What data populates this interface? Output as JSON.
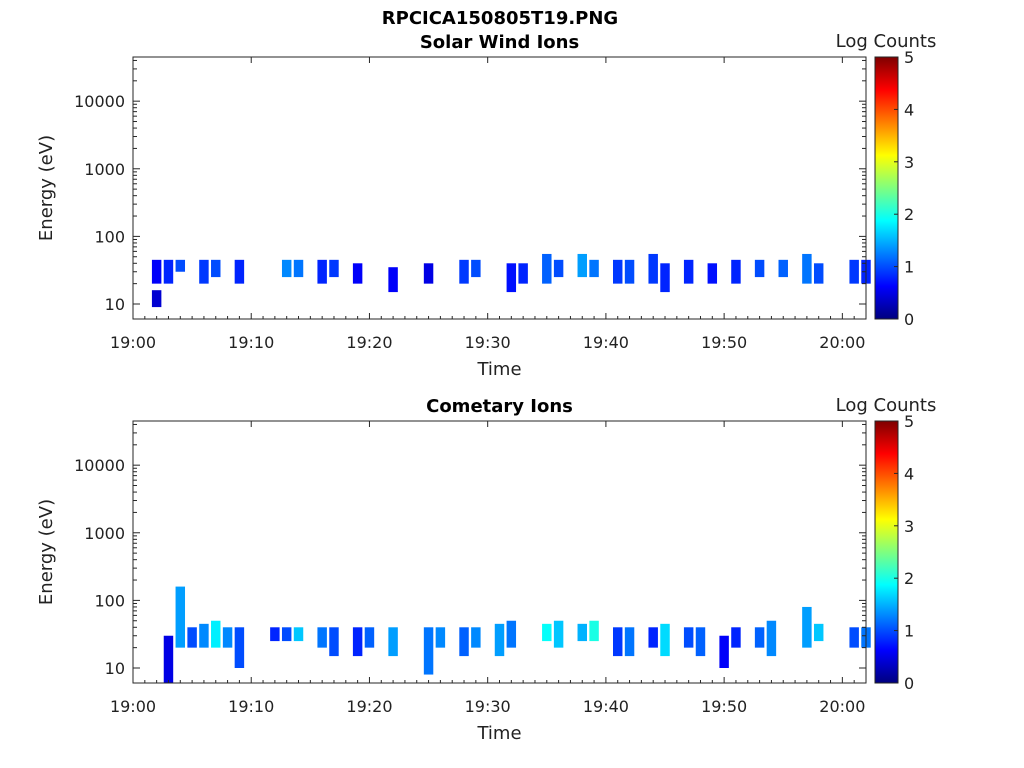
{
  "figure_title": "RPCICA150805T19.PNG",
  "colorbar_stops": [
    "#00007f",
    "#0000ff",
    "#007fff",
    "#00ffff",
    "#7fff7f",
    "#ffff00",
    "#ff7f00",
    "#ff0000",
    "#7f0000"
  ],
  "chart_data": [
    {
      "type": "heatmap",
      "title": "Solar Wind Ions",
      "xlabel": "Time",
      "ylabel": "Energy (eV)",
      "yscale": "log",
      "xlim": [
        "19:00",
        "20:02"
      ],
      "ylim": [
        6,
        45000
      ],
      "x_ticks": [
        "19:00",
        "19:10",
        "19:20",
        "19:30",
        "19:40",
        "19:50",
        "20:00"
      ],
      "y_ticks": [
        "10",
        "100",
        "1000",
        "10000"
      ],
      "colorbar": {
        "label": "Log Counts",
        "min": 0,
        "max": 5,
        "ticks": [
          "0",
          "1",
          "2",
          "3",
          "4",
          "5"
        ]
      },
      "bands": [
        {
          "t": "19:02",
          "e": [
            9,
            16
          ],
          "level": 0.4
        },
        {
          "t": "19:02",
          "e": [
            20,
            45
          ],
          "level": 0.6
        },
        {
          "t": "19:03",
          "e": [
            20,
            45
          ],
          "level": 0.8
        },
        {
          "t": "19:04",
          "e": [
            30,
            45
          ],
          "level": 1.0
        },
        {
          "t": "19:06",
          "e": [
            20,
            45
          ],
          "level": 0.9
        },
        {
          "t": "19:07",
          "e": [
            25,
            45
          ],
          "level": 1.0
        },
        {
          "t": "19:09",
          "e": [
            20,
            45
          ],
          "level": 0.8
        },
        {
          "t": "19:13",
          "e": [
            25,
            45
          ],
          "level": 1.3
        },
        {
          "t": "19:14",
          "e": [
            25,
            45
          ],
          "level": 1.2
        },
        {
          "t": "19:16",
          "e": [
            20,
            45
          ],
          "level": 0.8
        },
        {
          "t": "19:17",
          "e": [
            25,
            45
          ],
          "level": 0.9
        },
        {
          "t": "19:19",
          "e": [
            20,
            40
          ],
          "level": 0.6
        },
        {
          "t": "19:22",
          "e": [
            15,
            35
          ],
          "level": 0.6
        },
        {
          "t": "19:25",
          "e": [
            20,
            40
          ],
          "level": 0.5
        },
        {
          "t": "19:28",
          "e": [
            20,
            45
          ],
          "level": 0.9
        },
        {
          "t": "19:29",
          "e": [
            25,
            45
          ],
          "level": 1.0
        },
        {
          "t": "19:32",
          "e": [
            15,
            40
          ],
          "level": 0.7
        },
        {
          "t": "19:33",
          "e": [
            20,
            40
          ],
          "level": 0.8
        },
        {
          "t": "19:35",
          "e": [
            20,
            55
          ],
          "level": 1.1
        },
        {
          "t": "19:36",
          "e": [
            25,
            45
          ],
          "level": 1.0
        },
        {
          "t": "19:38",
          "e": [
            25,
            55
          ],
          "level": 1.4
        },
        {
          "t": "19:39",
          "e": [
            25,
            45
          ],
          "level": 1.2
        },
        {
          "t": "19:41",
          "e": [
            20,
            45
          ],
          "level": 0.9
        },
        {
          "t": "19:42",
          "e": [
            20,
            45
          ],
          "level": 1.0
        },
        {
          "t": "19:44",
          "e": [
            20,
            55
          ],
          "level": 0.9
        },
        {
          "t": "19:45",
          "e": [
            15,
            40
          ],
          "level": 0.8
        },
        {
          "t": "19:47",
          "e": [
            20,
            45
          ],
          "level": 0.8
        },
        {
          "t": "19:49",
          "e": [
            20,
            40
          ],
          "level": 0.7
        },
        {
          "t": "19:51",
          "e": [
            20,
            45
          ],
          "level": 0.8
        },
        {
          "t": "19:53",
          "e": [
            25,
            45
          ],
          "level": 1.0
        },
        {
          "t": "19:55",
          "e": [
            25,
            45
          ],
          "level": 1.1
        },
        {
          "t": "19:57",
          "e": [
            20,
            55
          ],
          "level": 1.2
        },
        {
          "t": "19:58",
          "e": [
            20,
            40
          ],
          "level": 1.0
        },
        {
          "t": "20:01",
          "e": [
            20,
            45
          ],
          "level": 0.9
        },
        {
          "t": "20:02",
          "e": [
            20,
            45
          ],
          "level": 0.8
        }
      ]
    },
    {
      "type": "heatmap",
      "title": "Cometary Ions",
      "xlabel": "Time",
      "ylabel": "Energy (eV)",
      "yscale": "log",
      "xlim": [
        "19:00",
        "20:02"
      ],
      "ylim": [
        6,
        45000
      ],
      "x_ticks": [
        "19:00",
        "19:10",
        "19:20",
        "19:30",
        "19:40",
        "19:50",
        "20:00"
      ],
      "y_ticks": [
        "10",
        "100",
        "1000",
        "10000"
      ],
      "colorbar": {
        "label": "Log Counts",
        "min": 0,
        "max": 5,
        "ticks": [
          "0",
          "1",
          "2",
          "3",
          "4",
          "5"
        ]
      },
      "bands": [
        {
          "t": "19:03",
          "e": [
            6,
            30
          ],
          "level": 0.5
        },
        {
          "t": "19:04",
          "e": [
            20,
            160
          ],
          "level": 1.4
        },
        {
          "t": "19:05",
          "e": [
            20,
            40
          ],
          "level": 1.0
        },
        {
          "t": "19:06",
          "e": [
            20,
            45
          ],
          "level": 1.3
        },
        {
          "t": "19:07",
          "e": [
            20,
            50
          ],
          "level": 1.8
        },
        {
          "t": "19:08",
          "e": [
            20,
            40
          ],
          "level": 1.3
        },
        {
          "t": "19:09",
          "e": [
            10,
            40
          ],
          "level": 1.0
        },
        {
          "t": "19:12",
          "e": [
            25,
            40
          ],
          "level": 0.8
        },
        {
          "t": "19:13",
          "e": [
            25,
            40
          ],
          "level": 1.0
        },
        {
          "t": "19:14",
          "e": [
            25,
            40
          ],
          "level": 1.6
        },
        {
          "t": "19:16",
          "e": [
            20,
            40
          ],
          "level": 1.2
        },
        {
          "t": "19:17",
          "e": [
            15,
            40
          ],
          "level": 1.0
        },
        {
          "t": "19:19",
          "e": [
            15,
            40
          ],
          "level": 0.8
        },
        {
          "t": "19:20",
          "e": [
            20,
            40
          ],
          "level": 1.1
        },
        {
          "t": "19:22",
          "e": [
            15,
            40
          ],
          "level": 1.4
        },
        {
          "t": "19:25",
          "e": [
            8,
            40
          ],
          "level": 1.2
        },
        {
          "t": "19:26",
          "e": [
            20,
            40
          ],
          "level": 1.3
        },
        {
          "t": "19:28",
          "e": [
            15,
            40
          ],
          "level": 1.1
        },
        {
          "t": "19:29",
          "e": [
            20,
            40
          ],
          "level": 1.3
        },
        {
          "t": "19:31",
          "e": [
            15,
            45
          ],
          "level": 1.4
        },
        {
          "t": "19:32",
          "e": [
            20,
            50
          ],
          "level": 1.2
        },
        {
          "t": "19:35",
          "e": [
            25,
            45
          ],
          "level": 1.9
        },
        {
          "t": "19:36",
          "e": [
            20,
            50
          ],
          "level": 1.6
        },
        {
          "t": "19:38",
          "e": [
            25,
            45
          ],
          "level": 1.5
        },
        {
          "t": "19:39",
          "e": [
            25,
            50
          ],
          "level": 2.0
        },
        {
          "t": "19:41",
          "e": [
            15,
            40
          ],
          "level": 0.9
        },
        {
          "t": "19:42",
          "e": [
            15,
            40
          ],
          "level": 1.2
        },
        {
          "t": "19:44",
          "e": [
            20,
            40
          ],
          "level": 0.8
        },
        {
          "t": "19:45",
          "e": [
            15,
            45
          ],
          "level": 1.7
        },
        {
          "t": "19:47",
          "e": [
            20,
            40
          ],
          "level": 1.0
        },
        {
          "t": "19:48",
          "e": [
            15,
            40
          ],
          "level": 1.1
        },
        {
          "t": "19:50",
          "e": [
            10,
            30
          ],
          "level": 0.6
        },
        {
          "t": "19:51",
          "e": [
            20,
            40
          ],
          "level": 0.8
        },
        {
          "t": "19:53",
          "e": [
            20,
            40
          ],
          "level": 1.1
        },
        {
          "t": "19:54",
          "e": [
            15,
            50
          ],
          "level": 1.3
        },
        {
          "t": "19:57",
          "e": [
            20,
            80
          ],
          "level": 1.4
        },
        {
          "t": "19:58",
          "e": [
            25,
            45
          ],
          "level": 1.6
        },
        {
          "t": "20:01",
          "e": [
            20,
            40
          ],
          "level": 1.0
        },
        {
          "t": "20:02",
          "e": [
            20,
            40
          ],
          "level": 1.2
        }
      ]
    }
  ]
}
